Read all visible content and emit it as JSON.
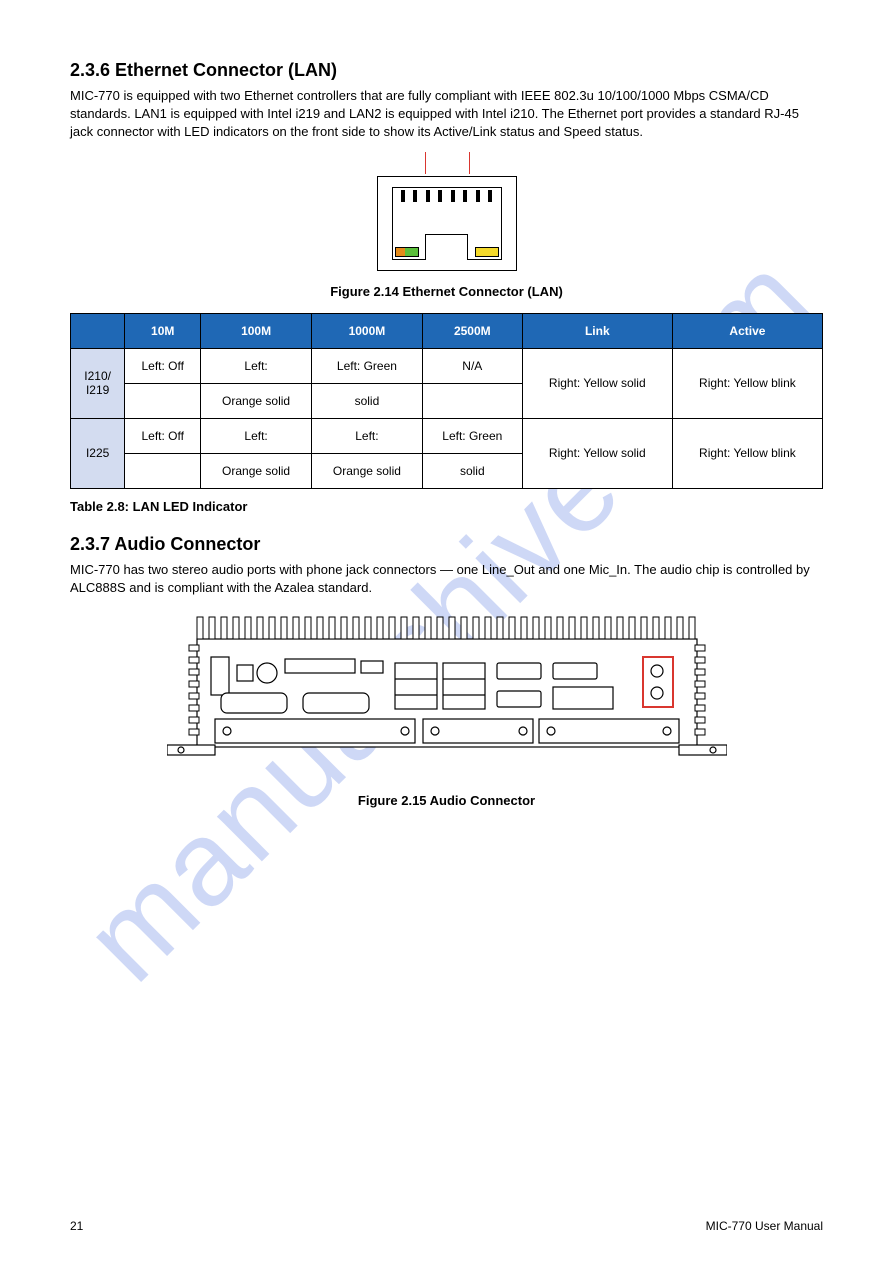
{
  "watermark_text": "manualshive.com",
  "section_lan": {
    "heading": "2.3.6 Ethernet Connector (LAN)",
    "text": "MIC-770 is equipped with two Ethernet controllers that are fully compliant with IEEE 802.3u 10/100/1000 Mbps CSMA/CD standards. LAN1 is equipped with Intel i219 and LAN2 is equipped with Intel i210. The Ethernet port provides a standard RJ-45 jack connector with LED indicators on the front side to show its Active/Link status and Speed status.",
    "fig_caption": "Figure 2.14 Ethernet Connector (LAN)"
  },
  "led_table": {
    "headers": [
      "",
      "10M",
      "100M",
      "1000M",
      "2500M",
      "Link",
      "Active"
    ],
    "rows": [
      {
        "label": "I210/\nI219",
        "cells": [
          "Left: Off",
          "Left:\nOrange solid",
          "Left: Green\nsolid",
          "N/A",
          "Right: Yellow solid",
          "Right: Yellow blink"
        ]
      },
      {
        "label": "I225",
        "cells": [
          "Left: Off",
          "Left:\nOrange solid",
          "Left:\nOrange solid",
          "Left: Green\nsolid",
          "Right: Yellow solid",
          "Right: Yellow blink"
        ]
      }
    ],
    "caption": "Table 2.8: LAN LED Indicator"
  },
  "section_audio": {
    "heading": "2.3.7 Audio Connector",
    "text": "MIC-770 has two stereo audio ports with phone jack connectors — one Line_Out and one Mic_In. The audio chip is controlled by ALC888S and is compliant with the Azalea standard.",
    "fig_caption": "Figure 2.15 Audio Connector"
  },
  "footer": {
    "page": "21",
    "manual": "MIC-770 User Manual"
  },
  "colors": {
    "table_header_bg": "#1f68b5",
    "table_label_bg": "#d3dcf0",
    "highlight_red": "#d9362f",
    "led_green": "#5bbf3a",
    "led_orange": "#e48b1a",
    "led_yellow": "#f4d92a"
  }
}
